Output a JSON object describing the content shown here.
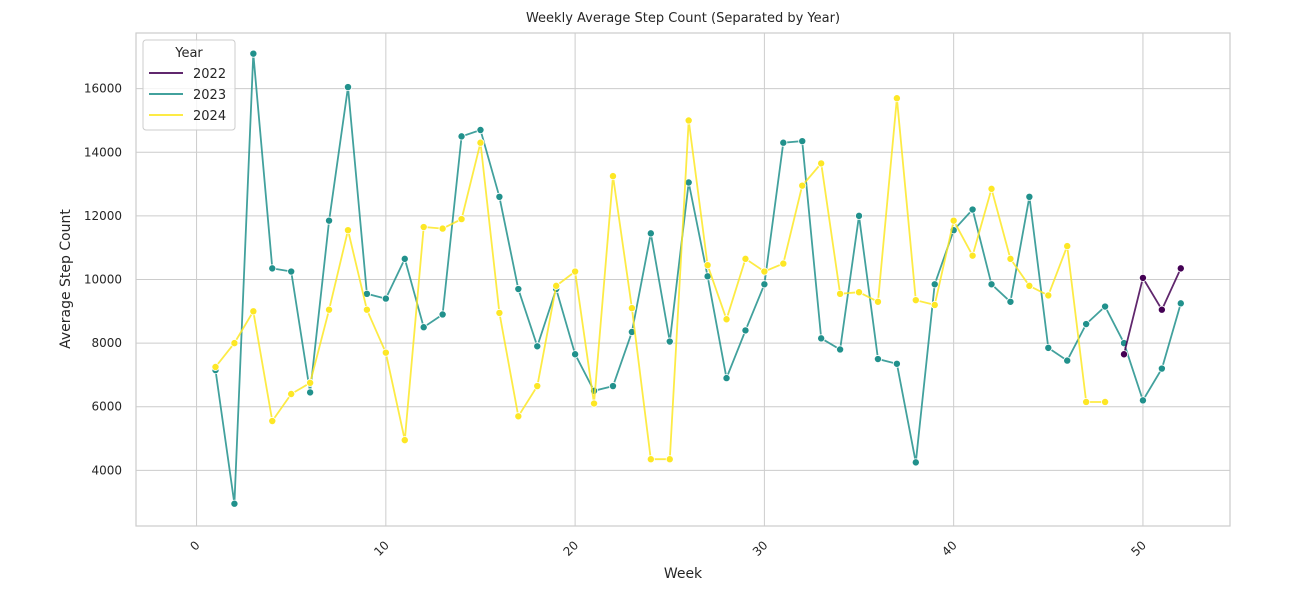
{
  "chart_data": {
    "type": "line",
    "title": "Weekly Average Step Count (Separated by Year)",
    "xlabel": "Week",
    "ylabel": "Average Step Count",
    "xlim": [
      -3.2,
      54.6
    ],
    "ylim": [
      2250,
      17750
    ],
    "xticks": [
      0,
      10,
      20,
      30,
      40,
      50
    ],
    "yticks": [
      4000,
      6000,
      8000,
      10000,
      12000,
      14000,
      16000
    ],
    "grid": true,
    "legend": {
      "title": "Year",
      "placement": "top-left"
    },
    "series": [
      {
        "name": "2022",
        "color": "#440154",
        "x": [
          49,
          50,
          51,
          52
        ],
        "y": [
          7650,
          10050,
          9050,
          10350
        ]
      },
      {
        "name": "2023",
        "color": "#21918c",
        "x": [
          1,
          2,
          3,
          4,
          5,
          6,
          7,
          8,
          9,
          10,
          11,
          12,
          13,
          14,
          15,
          16,
          17,
          18,
          19,
          20,
          21,
          22,
          23,
          24,
          25,
          26,
          27,
          28,
          29,
          30,
          31,
          32,
          33,
          34,
          35,
          36,
          37,
          38,
          39,
          40,
          41,
          42,
          43,
          44,
          45,
          46,
          47,
          48,
          49,
          50,
          51,
          52
        ],
        "y": [
          7150,
          2950,
          17100,
          10350,
          10250,
          6450,
          11850,
          16050,
          9550,
          9400,
          10650,
          8500,
          8900,
          14500,
          14700,
          12600,
          9700,
          7900,
          9700,
          7650,
          6500,
          6650,
          8350,
          11450,
          8050,
          13050,
          10100,
          6900,
          8400,
          9850,
          14300,
          14350,
          8150,
          7800,
          12000,
          7500,
          7350,
          4250,
          9850,
          11550,
          12200,
          9850,
          9300,
          12600,
          7850,
          7450,
          8600,
          9150,
          8000,
          6200,
          7200,
          9250
        ]
      },
      {
        "name": "2024",
        "color": "#fde725",
        "x": [
          1,
          2,
          3,
          4,
          5,
          6,
          7,
          8,
          9,
          10,
          11,
          12,
          13,
          14,
          15,
          16,
          17,
          18,
          19,
          20,
          21,
          22,
          23,
          24,
          25,
          26,
          27,
          28,
          29,
          30,
          31,
          32,
          33,
          34,
          35,
          36,
          37,
          38,
          39,
          40,
          41,
          42,
          43,
          44,
          45,
          46,
          47,
          48
        ],
        "y": [
          7250,
          8000,
          9000,
          5550,
          6400,
          6750,
          9050,
          11550,
          9050,
          7700,
          4950,
          11650,
          11600,
          11900,
          14300,
          8950,
          5700,
          6650,
          9800,
          10250,
          6100,
          13250,
          9100,
          4350,
          4350,
          15000,
          10450,
          8750,
          10650,
          10250,
          10500,
          12950,
          13650,
          9550,
          9600,
          9300,
          15700,
          9350,
          9200,
          11850,
          10750,
          12850,
          10650,
          9800,
          9500,
          11050,
          6150,
          6150
        ]
      }
    ]
  }
}
